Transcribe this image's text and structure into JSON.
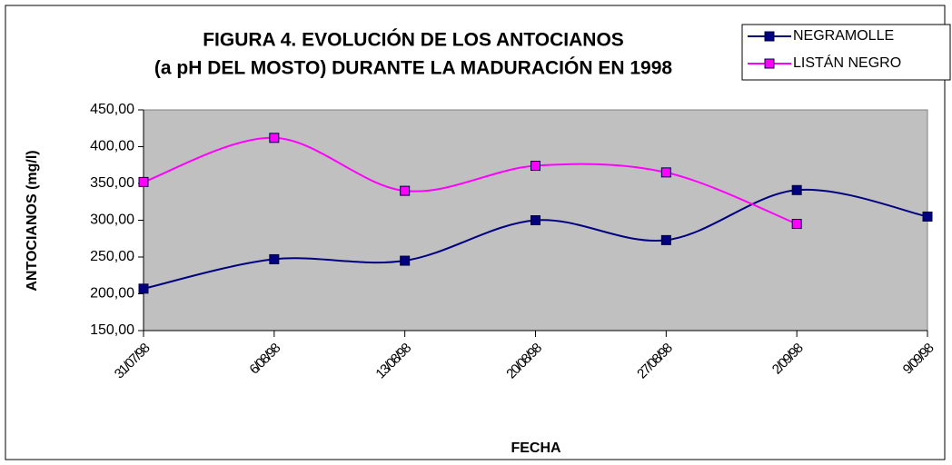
{
  "chart_data": {
    "type": "line",
    "title": "FIGURA 4.  EVOLUCIÓN DE LOS ANTOCIANOS",
    "subtitle": "(a pH  DEL MOSTO) DURANTE LA MADURACIÓN EN 1998",
    "x_label": "FECHA",
    "y_label": "ANTOCIANOS (mg/l)",
    "categories": [
      "31/07/98",
      "6/08/98",
      "13/08/98",
      "20/08/98",
      "27/08/98",
      "2/09/98",
      "9/09/98"
    ],
    "series": [
      {
        "name": "NEGRAMOLLE",
        "color": "#000080",
        "values": [
          207,
          247,
          245,
          300,
          273,
          341,
          305
        ]
      },
      {
        "name": "LISTÁN NEGRO",
        "color": "#ff00ff",
        "values": [
          352,
          412,
          340,
          374,
          365,
          295,
          null
        ]
      }
    ],
    "ylim": [
      150,
      450
    ],
    "yticks": [
      {
        "value": 150,
        "label": "150,00"
      },
      {
        "value": 200,
        "label": "200,00"
      },
      {
        "value": 250,
        "label": "250,00"
      },
      {
        "value": 300,
        "label": "300,00"
      },
      {
        "value": 350,
        "label": "350,00"
      },
      {
        "value": 400,
        "label": "400,00"
      },
      {
        "value": 450,
        "label": "450,00"
      }
    ],
    "plot_background": "#c0c0c0",
    "legend": "top-right"
  }
}
